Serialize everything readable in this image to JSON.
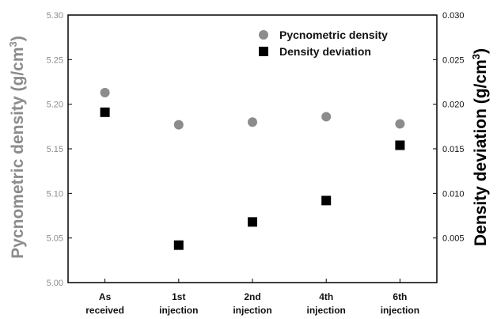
{
  "chart_data": {
    "type": "scatter",
    "categories": [
      {
        "line1": "As",
        "line2": "received"
      },
      {
        "line1": "1st",
        "line2": "injection"
      },
      {
        "line1": "2nd",
        "line2": "injection"
      },
      {
        "line1": "4th",
        "line2": "injection"
      },
      {
        "line1": "6th",
        "line2": "injection"
      }
    ],
    "left_axis": {
      "label": "Pycnometric density (g/cm3)",
      "label_main": "Pycnometric density (g/cm",
      "label_sup": "3",
      "label_tail": ")",
      "ylim": [
        5.0,
        5.3
      ],
      "ticks": [
        "5.00",
        "5.05",
        "5.10",
        "5.15",
        "5.20",
        "5.25",
        "5.30"
      ],
      "color": "#8c8c8c"
    },
    "right_axis": {
      "label": "Density deviation (g/cm3)",
      "label_main": "Density deviation (g/cm",
      "label_sup": "3",
      "label_tail": ")",
      "ylim": [
        0.0,
        0.03
      ],
      "ticks": [
        "0.005",
        "0.010",
        "0.015",
        "0.020",
        "0.025",
        "0.030"
      ],
      "color": "#000000"
    },
    "series": [
      {
        "name": "Pycnometric density",
        "axis": "left",
        "marker": "circle",
        "color": "#8c8c8c",
        "values": [
          5.213,
          5.177,
          5.18,
          5.186,
          5.178
        ]
      },
      {
        "name": "Density deviation",
        "axis": "right",
        "marker": "square",
        "color": "#000000",
        "values": [
          0.0191,
          0.0042,
          0.0068,
          0.0092,
          0.0154
        ]
      }
    ],
    "legend_position": "top-right",
    "grid": false
  }
}
